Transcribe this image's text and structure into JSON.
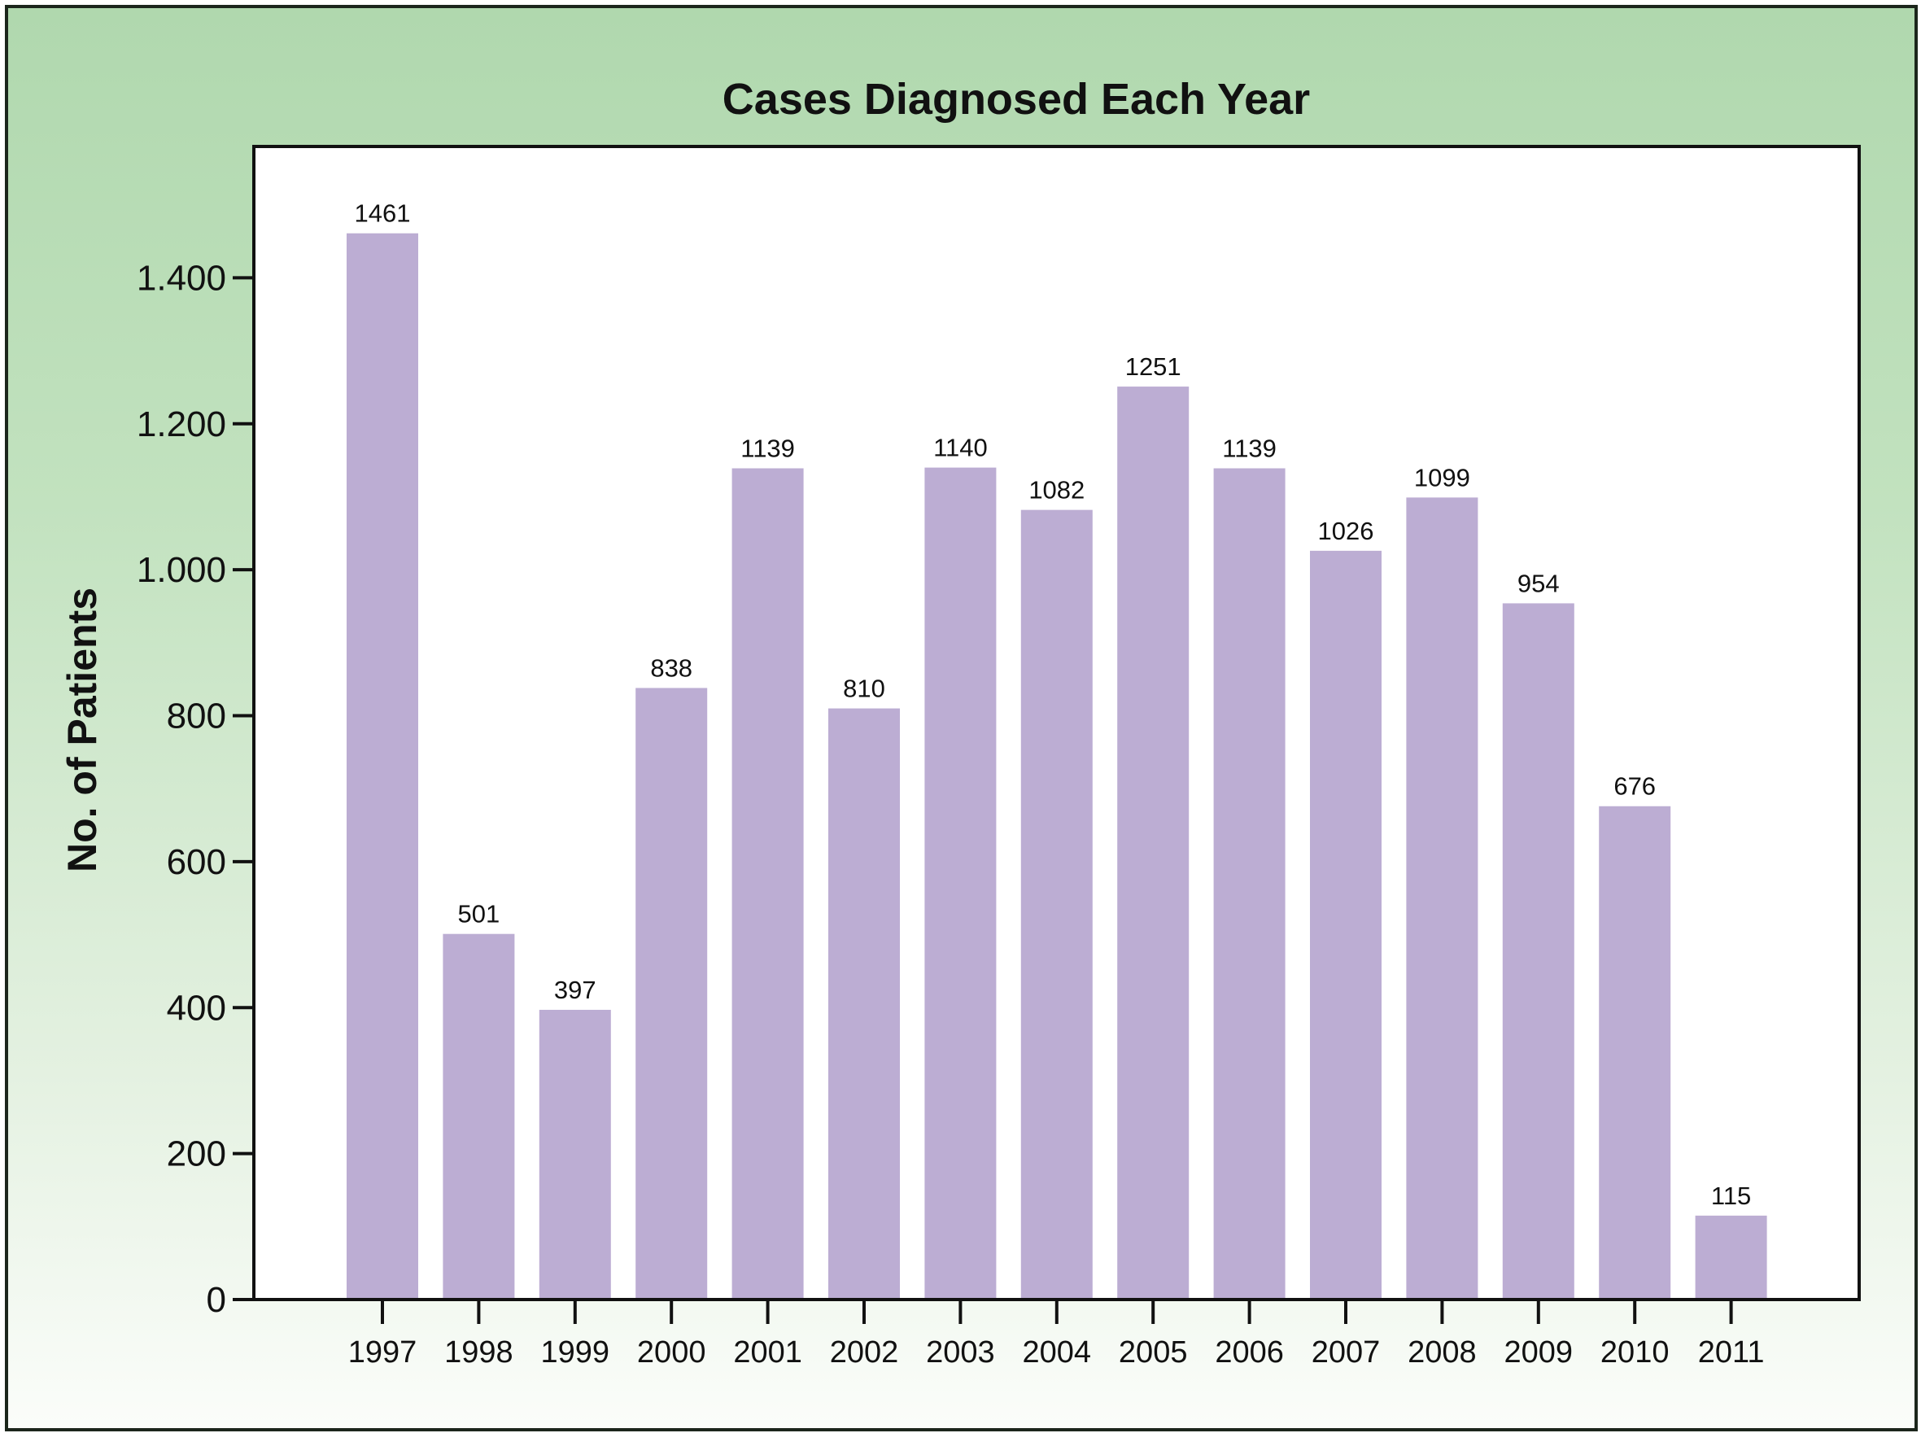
{
  "chart_data": {
    "type": "bar",
    "title": "Cases Diagnosed Each Year",
    "xlabel": "",
    "ylabel": "No. of Patients",
    "categories": [
      "1997",
      "1998",
      "1999",
      "2000",
      "2001",
      "2002",
      "2003",
      "2004",
      "2005",
      "2006",
      "2007",
      "2008",
      "2009",
      "2010",
      "2011"
    ],
    "values": [
      1461,
      501,
      397,
      838,
      1139,
      810,
      1140,
      1082,
      1251,
      1139,
      1026,
      1099,
      954,
      676,
      115
    ],
    "ylim": [
      0,
      1580
    ],
    "yticks": [
      0,
      200,
      400,
      600,
      800,
      1000,
      1200,
      1400
    ],
    "ytick_labels": [
      "0",
      "200",
      "400",
      "600",
      "800",
      "1.000",
      "1.200",
      "1.400"
    ],
    "grid": false,
    "colors": {
      "bar": "#bcadd3",
      "background_top": "#b0d8ae",
      "background_bottom": "#fbfdfa"
    }
  }
}
